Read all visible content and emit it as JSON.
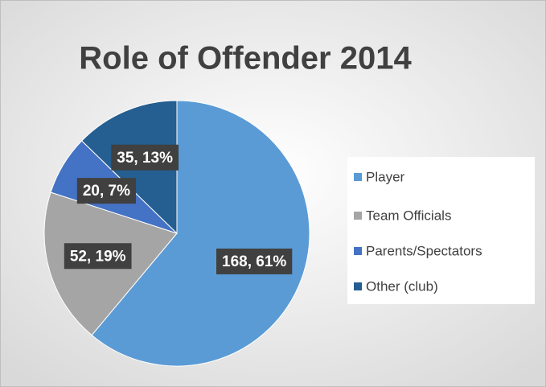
{
  "chart_data": {
    "type": "pie",
    "title": "Role of Offender 2014",
    "categories": [
      "Player",
      "Team Officials",
      "Parents/Spectators",
      "Other (club)"
    ],
    "values": [
      168,
      52,
      20,
      35
    ],
    "value_labels": [
      "168, 61%",
      "52, 19%",
      "20, 7%",
      "35, 13%"
    ],
    "colors": [
      "#5b9bd5",
      "#a5a5a5",
      "#4472c4",
      "#255e91"
    ],
    "legend": "right"
  }
}
